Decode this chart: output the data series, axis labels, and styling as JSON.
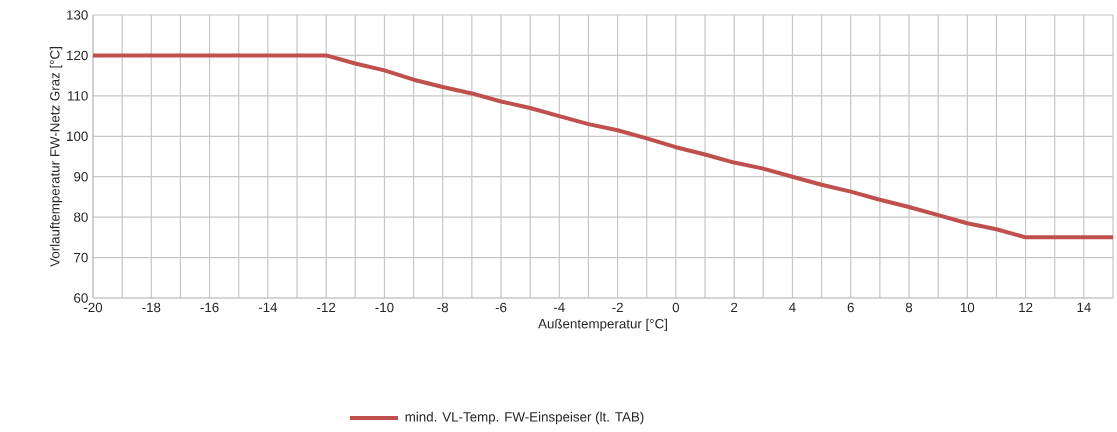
{
  "chart_data": {
    "type": "line",
    "xlabel": "Außentemperatur  [°C]",
    "ylabel": "Vorlauftemperatur FW-Netz  Graz [°C]",
    "x": [
      -20,
      -19,
      -18,
      -17,
      -16,
      -15,
      -14,
      -13,
      -12,
      -11,
      -10,
      -9,
      -8,
      -7,
      -6,
      -5,
      -4,
      -3,
      -2,
      -1,
      0,
      1,
      2,
      3,
      4,
      5,
      6,
      7,
      8,
      9,
      10,
      11,
      12,
      13,
      14,
      15
    ],
    "series": [
      {
        "name": "mind. VL-Temp. FW-Einspeiser (lt. TAB)",
        "color": "#c0504d",
        "values": [
          120,
          120,
          120,
          120,
          120,
          120,
          120,
          120,
          120,
          118,
          116.3,
          114,
          112.2,
          110.6,
          108.6,
          107,
          105,
          103,
          101.5,
          99.5,
          97.3,
          95.5,
          93.5,
          92,
          90,
          88,
          86.3,
          84.3,
          82.5,
          80.5,
          78.5,
          77,
          75,
          75,
          75,
          75
        ]
      }
    ],
    "xlim": [
      -20,
      15
    ],
    "ylim": [
      60,
      130
    ],
    "xticks": [
      -20,
      {
        "value": -19,
        "label": null
      },
      -18,
      {
        "value": -17,
        "label": null
      },
      -16,
      {
        "value": -15,
        "label": null
      },
      -14,
      {
        "value": -13,
        "label": null
      },
      -12,
      {
        "value": -11,
        "label": null
      },
      -10,
      {
        "value": -9,
        "label": null
      },
      -8,
      {
        "value": -7,
        "label": null
      },
      -6,
      {
        "value": -5,
        "label": null
      },
      -4,
      {
        "value": -3,
        "label": null
      },
      -2,
      {
        "value": -1,
        "label": null
      },
      0,
      {
        "value": 1,
        "label": null
      },
      2,
      {
        "value": 3,
        "label": null
      },
      4,
      {
        "value": 5,
        "label": null
      },
      6,
      {
        "value": 7,
        "label": null
      },
      8,
      {
        "value": 9,
        "label": null
      },
      10,
      {
        "value": 11,
        "label": null
      },
      12,
      {
        "value": 13,
        "label": null
      },
      14,
      {
        "value": 15,
        "label": null
      }
    ],
    "yticks": [
      60,
      70,
      80,
      90,
      100,
      110,
      120,
      130
    ],
    "grid": true,
    "legend": "bottom",
    "marker": "none",
    "line_style": "solid"
  }
}
